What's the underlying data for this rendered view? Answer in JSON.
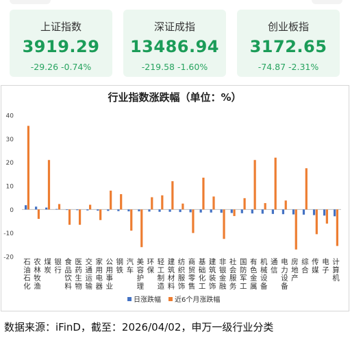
{
  "cards": [
    {
      "name": "上证指数",
      "value": "3919.29",
      "change": "-29.26 -0.74%"
    },
    {
      "name": "深证成指",
      "value": "13486.94",
      "change": "-219.58 -1.60%"
    },
    {
      "name": "创业板指",
      "value": "3172.65",
      "change": "-74.87 -2.31%"
    }
  ],
  "colors": {
    "card_bg": "#ecf7f0",
    "up_green": "#1b9c58",
    "daily": "#4472c4",
    "sixmonth": "#ed7d31"
  },
  "chart_data": {
    "type": "bar",
    "title": "行业指数涨跌幅（单位：%）",
    "xlabel": "",
    "ylabel": "",
    "ylim": [
      -20,
      40
    ],
    "yticks": [
      40,
      30,
      20,
      10,
      0,
      -10,
      -20
    ],
    "grid": false,
    "legend_position": "bottom",
    "categories": [
      "石油石化",
      "农林牧渔",
      "煤炭",
      "银行",
      "食品饮料",
      "医药生物",
      "交通运输",
      "家用电器",
      "公用事业",
      "钢铁",
      "汽车",
      "美容护理",
      "环保",
      "轻工制造",
      "建筑材料",
      "纺织服饰",
      "商贸零售",
      "基础化工",
      "建筑装饰",
      "非银金融",
      "社会服务",
      "国防军工",
      "有色金属",
      "机械设备",
      "通信",
      "电力设备",
      "房地产",
      "综合",
      "传媒",
      "电子",
      "计算机"
    ],
    "series": [
      {
        "name": "日涨跌幅",
        "color": "#4472c4",
        "values": [
          1.8,
          1.2,
          0.8,
          0.2,
          -0.2,
          -0.3,
          -0.4,
          -0.5,
          -0.6,
          -0.7,
          -0.8,
          -0.8,
          -0.9,
          -1.0,
          -1.0,
          -1.1,
          -1.2,
          -1.3,
          -1.3,
          -1.4,
          -1.5,
          -1.6,
          -1.7,
          -1.8,
          -1.9,
          -2.0,
          -2.1,
          -2.2,
          -2.4,
          -2.6,
          -2.9
        ]
      },
      {
        "name": "近6个月涨跌幅",
        "color": "#ed7d31",
        "values": [
          35.5,
          -4.0,
          21.0,
          2.3,
          -6.5,
          -6.5,
          2.0,
          -4.5,
          8.0,
          6.5,
          -9.0,
          -16.0,
          5.2,
          6.0,
          12.0,
          2.5,
          -10.0,
          13.5,
          5.5,
          -12.5,
          -2.8,
          4.8,
          21.0,
          2.7,
          22.0,
          3.8,
          -17.0,
          17.5,
          -10.5,
          -6.0,
          -15.5
        ]
      }
    ]
  },
  "source": "数据来源：iFinD，截至：2026/04/02，申万一级行业分类"
}
